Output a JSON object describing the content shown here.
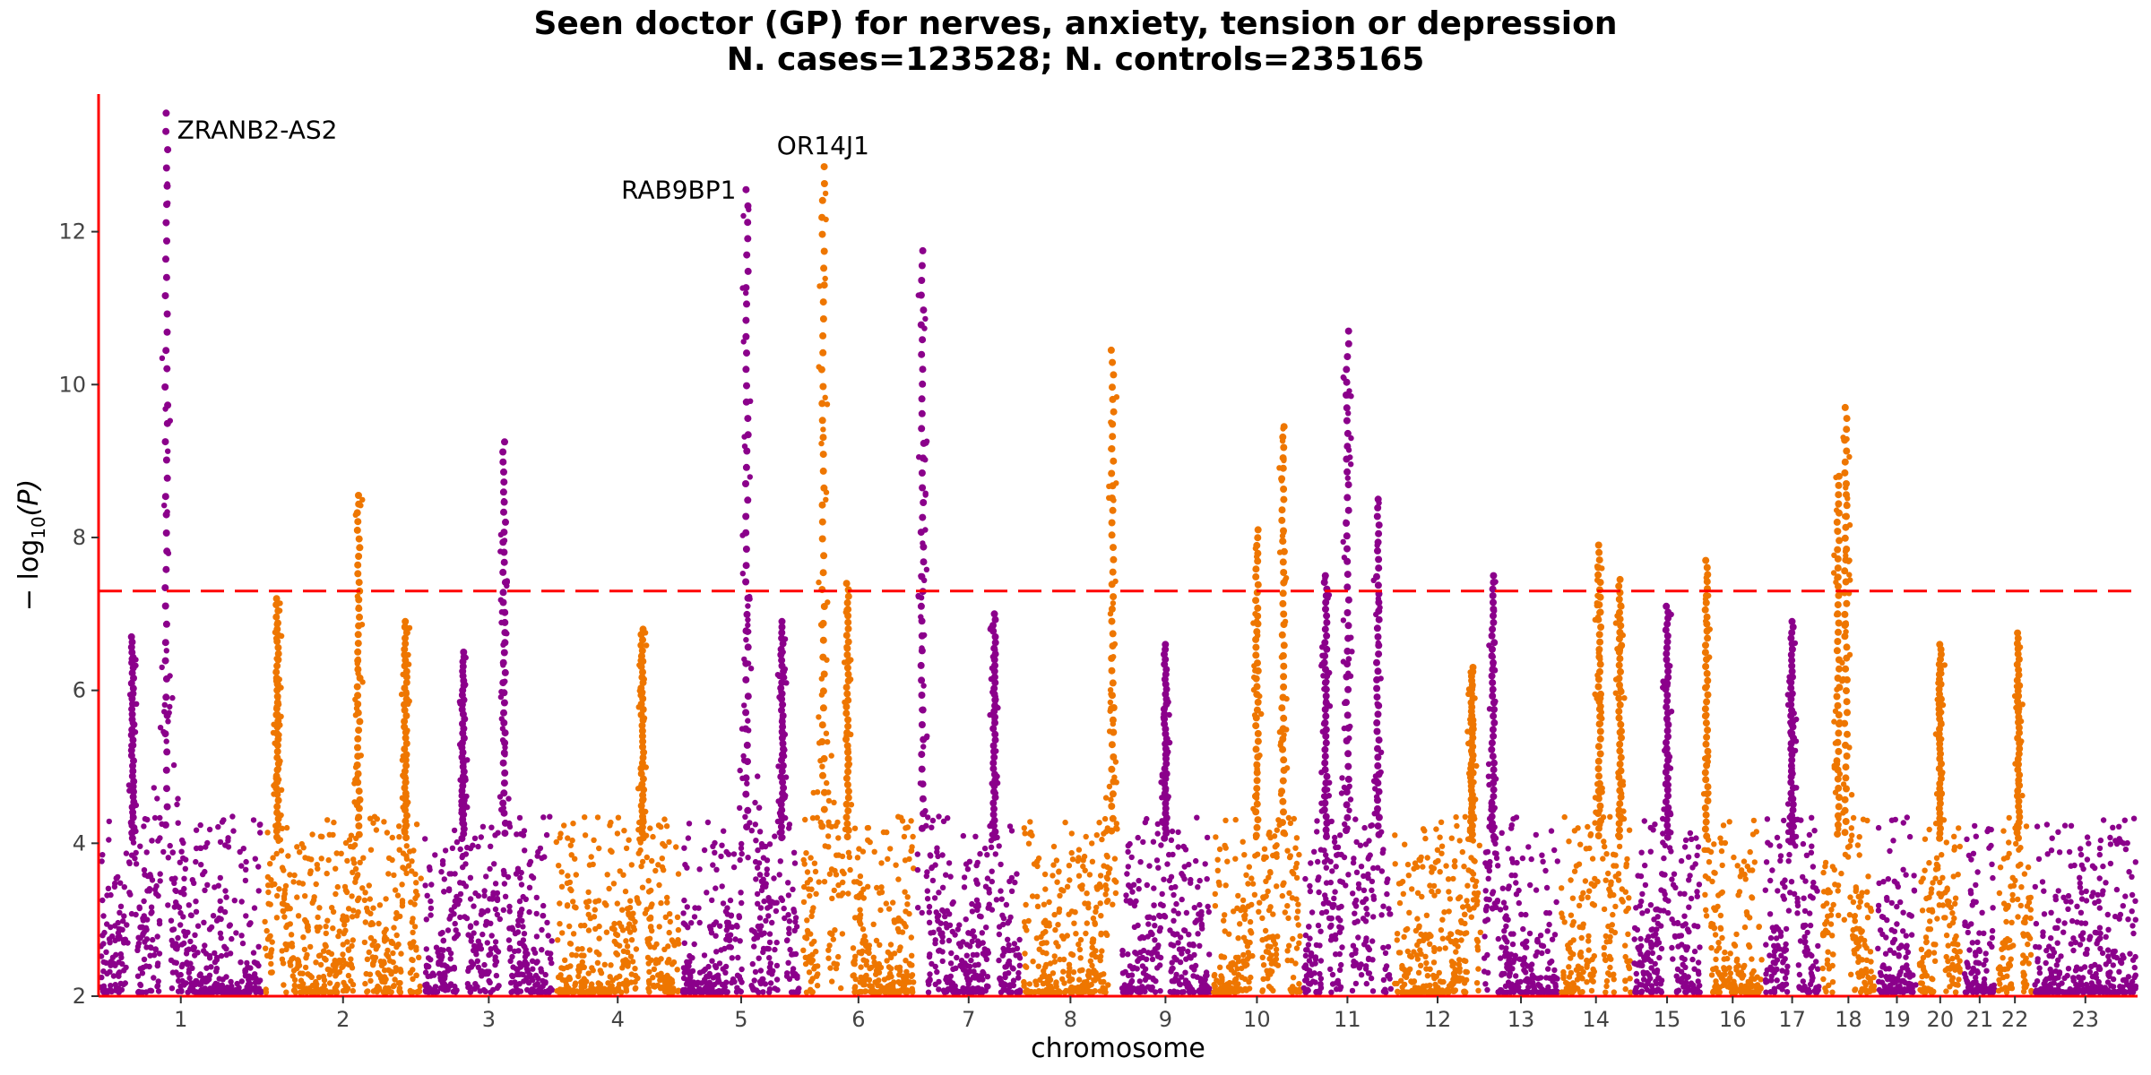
{
  "chart_data": {
    "type": "scatter",
    "title": "Seen doctor (GP) for nerves, anxiety, tension or depression",
    "subtitle": "N. cases=123528; N. controls=235165",
    "xlabel": "chromosome",
    "ylabel": "− log10(P)",
    "ylabel_parts": {
      "pre": "− log",
      "sub": "10",
      "post": "(P)"
    },
    "ylim": [
      2,
      13.8
    ],
    "y_ticks": [
      2,
      4,
      6,
      8,
      10,
      12
    ],
    "significance_line": 7.3,
    "grid": false,
    "colors": {
      "odd": "#8B008B",
      "even": "#EE7600",
      "threshold": "#FF0000",
      "axis": "#FF0000"
    },
    "chromosomes": [
      {
        "label": "1",
        "size": 249
      },
      {
        "label": "2",
        "size": 242
      },
      {
        "label": "3",
        "size": 198
      },
      {
        "label": "4",
        "size": 190
      },
      {
        "label": "5",
        "size": 181
      },
      {
        "label": "6",
        "size": 171
      },
      {
        "label": "7",
        "size": 159
      },
      {
        "label": "8",
        "size": 145
      },
      {
        "label": "9",
        "size": 138
      },
      {
        "label": "10",
        "size": 134
      },
      {
        "label": "11",
        "size": 135
      },
      {
        "label": "12",
        "size": 133
      },
      {
        "label": "13",
        "size": 114
      },
      {
        "label": "14",
        "size": 107
      },
      {
        "label": "15",
        "size": 102
      },
      {
        "label": "16",
        "size": 90
      },
      {
        "label": "17",
        "size": 83
      },
      {
        "label": "18",
        "size": 80
      },
      {
        "label": "19",
        "size": 59
      },
      {
        "label": "20",
        "size": 64
      },
      {
        "label": "21",
        "size": 47
      },
      {
        "label": "22",
        "size": 51
      },
      {
        "label": "23",
        "size": 156
      }
    ],
    "peaks": [
      {
        "chr": "1",
        "pos": 0.41,
        "max": 13.55
      },
      {
        "chr": "1",
        "pos": 0.2,
        "max": 6.7
      },
      {
        "chr": "2",
        "pos": 0.08,
        "max": 7.2
      },
      {
        "chr": "2",
        "pos": 0.6,
        "max": 8.55
      },
      {
        "chr": "2",
        "pos": 0.9,
        "max": 6.9
      },
      {
        "chr": "3",
        "pos": 0.62,
        "max": 9.25
      },
      {
        "chr": "3",
        "pos": 0.3,
        "max": 6.5
      },
      {
        "chr": "4",
        "pos": 0.7,
        "max": 6.8
      },
      {
        "chr": "5",
        "pos": 0.55,
        "max": 12.55
      },
      {
        "chr": "5",
        "pos": 0.85,
        "max": 6.9
      },
      {
        "chr": "6",
        "pos": 0.18,
        "max": 12.85
      },
      {
        "chr": "6",
        "pos": 0.4,
        "max": 7.4
      },
      {
        "chr": "7",
        "pos": 0.05,
        "max": 11.75
      },
      {
        "chr": "7",
        "pos": 0.75,
        "max": 7.0
      },
      {
        "chr": "8",
        "pos": 0.95,
        "max": 10.45
      },
      {
        "chr": "9",
        "pos": 0.5,
        "max": 6.6
      },
      {
        "chr": "10",
        "pos": 0.5,
        "max": 8.1
      },
      {
        "chr": "10",
        "pos": 0.8,
        "max": 9.45
      },
      {
        "chr": "11",
        "pos": 0.5,
        "max": 10.7
      },
      {
        "chr": "11",
        "pos": 0.85,
        "max": 8.5
      },
      {
        "chr": "11",
        "pos": 0.25,
        "max": 7.5
      },
      {
        "chr": "12",
        "pos": 0.9,
        "max": 6.3
      },
      {
        "chr": "13",
        "pos": 0.12,
        "max": 7.5
      },
      {
        "chr": "14",
        "pos": 0.55,
        "max": 7.9
      },
      {
        "chr": "14",
        "pos": 0.85,
        "max": 7.45
      },
      {
        "chr": "15",
        "pos": 0.5,
        "max": 7.1
      },
      {
        "chr": "16",
        "pos": 0.05,
        "max": 7.7
      },
      {
        "chr": "17",
        "pos": 0.5,
        "max": 6.9
      },
      {
        "chr": "18",
        "pos": 0.45,
        "max": 9.7
      },
      {
        "chr": "18",
        "pos": 0.3,
        "max": 8.8
      },
      {
        "chr": "20",
        "pos": 0.5,
        "max": 6.6
      },
      {
        "chr": "22",
        "pos": 0.6,
        "max": 6.75
      }
    ],
    "annotations": [
      {
        "text": "ZRANB2-AS2",
        "chr": "1",
        "pos": 0.41,
        "y": 13.55,
        "side": "right"
      },
      {
        "text": "RAB9BP1",
        "chr": "5",
        "pos": 0.55,
        "y": 12.55,
        "side": "left"
      },
      {
        "text": "OR14J1",
        "chr": "6",
        "pos": 0.18,
        "y": 12.85,
        "side": "center"
      }
    ]
  }
}
